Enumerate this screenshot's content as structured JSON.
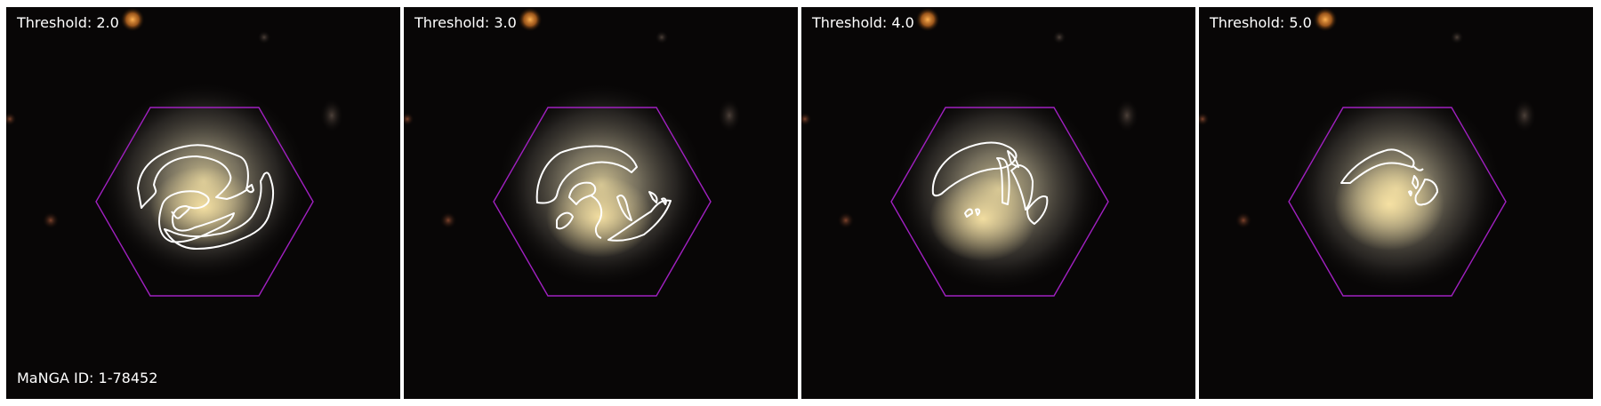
{
  "panels": [
    {
      "threshold_label": "Threshold: 2.0"
    },
    {
      "threshold_label": "Threshold: 3.0"
    },
    {
      "threshold_label": "Threshold: 4.0"
    },
    {
      "threshold_label": "Threshold: 5.0"
    }
  ],
  "manga_label": "MaNGA ID: 1-78452",
  "colors": {
    "hexagon": "#a020c0",
    "contour": "#ffffff",
    "background": "#080606"
  }
}
